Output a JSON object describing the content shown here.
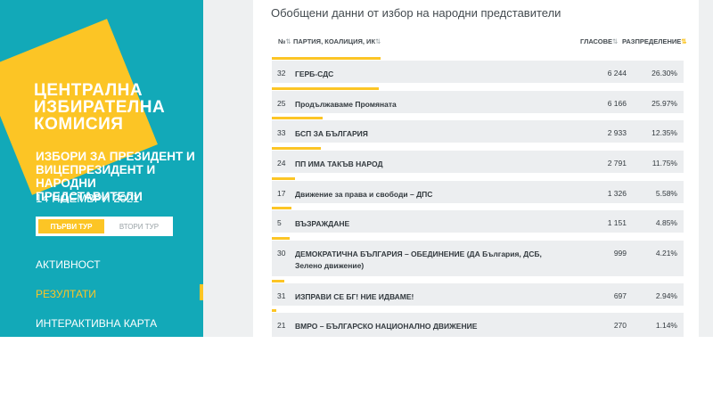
{
  "logo": {
    "line1": "ЦЕНТРАЛНА",
    "line2": "ИЗБИРАТЕЛНА",
    "line3": "КОМИСИЯ"
  },
  "election": {
    "title": "ИЗБОРИ ЗА ПРЕЗИДЕНТ И ВИЦЕПРЕЗИДЕНТ И НАРОДНИ ПРЕДСТАВИТЕЛИ",
    "date": "14 НОЕМВРИ 2021"
  },
  "tours": {
    "first": "ПЪРВИ ТУР",
    "second": "ВТОРИ ТУР",
    "selected": "first"
  },
  "nav": {
    "items": [
      {
        "label": "АКТИВНОСТ",
        "active": false
      },
      {
        "label": "РЕЗУЛТАТИ",
        "active": true
      },
      {
        "label": "ИНТЕРАКТИВНА КАРТА",
        "active": false
      }
    ]
  },
  "content": {
    "title": "Обобщени данни от избор на народни представители",
    "headers": {
      "num": "№",
      "party": "ПАРТИЯ, КОАЛИЦИЯ, ИК",
      "votes": "ГЛАСОВЕ",
      "share": "РАЗПРЕДЕЛЕНИЕ"
    },
    "rows": [
      {
        "num": "32",
        "name": "ГЕРБ-СДС",
        "votes": "6 244",
        "pct": "26.30%",
        "share": 26.3
      },
      {
        "num": "25",
        "name": "Продължаваме Промяната",
        "votes": "6 166",
        "pct": "25.97%",
        "share": 25.97
      },
      {
        "num": "33",
        "name": "БСП ЗА БЪЛГАРИЯ",
        "votes": "2 933",
        "pct": "12.35%",
        "share": 12.35
      },
      {
        "num": "24",
        "name": "ПП ИМА ТАКЪВ НАРОД",
        "votes": "2 791",
        "pct": "11.75%",
        "share": 11.75
      },
      {
        "num": "17",
        "name": "Движение за права и свободи – ДПС",
        "votes": "1 326",
        "pct": "5.58%",
        "share": 5.58
      },
      {
        "num": "5",
        "name": "ВЪЗРАЖДАНЕ",
        "votes": "1 151",
        "pct": "4.85%",
        "share": 4.85
      },
      {
        "num": "30",
        "name": "ДЕМОКРАТИЧНА БЪЛГАРИЯ – ОБЕДИНЕНИЕ (ДА България, ДСБ, Зелено движение)",
        "votes": "999",
        "pct": "4.21%",
        "share": 4.21
      },
      {
        "num": "31",
        "name": "ИЗПРАВИ СЕ БГ! НИЕ ИДВАМЕ!",
        "votes": "697",
        "pct": "2.94%",
        "share": 2.94
      },
      {
        "num": "21",
        "name": "ВМРО – БЪЛГАРСКО НАЦИОНАЛНО ДВИЖЕНИЕ",
        "votes": "270",
        "pct": "1.14%",
        "share": 1.14
      }
    ]
  },
  "colors": {
    "sidebar": "#12a9b8",
    "accent": "#fcc525",
    "row_bg": "#eceef0"
  }
}
